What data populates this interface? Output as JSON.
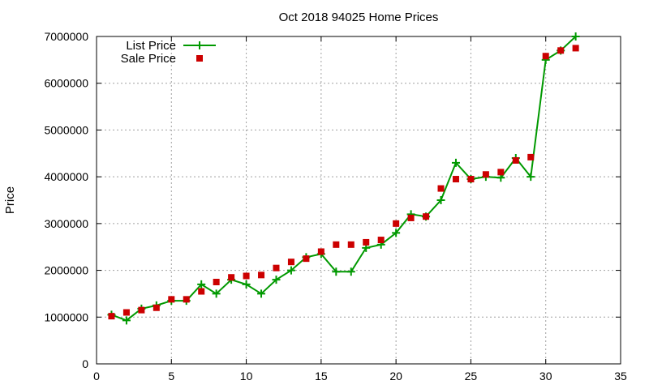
{
  "chart_data": {
    "type": "line",
    "title": "Oct 2018 94025 Home Prices",
    "xlabel": "",
    "ylabel": "Price",
    "xlim": [
      0,
      35
    ],
    "ylim": [
      0,
      7000000
    ],
    "x_ticks": [
      "0",
      "5",
      "10",
      "15",
      "20",
      "25",
      "30",
      "35"
    ],
    "y_ticks": [
      "0",
      "1000000",
      "2000000",
      "3000000",
      "4000000",
      "5000000",
      "6000000",
      "7000000"
    ],
    "grid": true,
    "legend_position": "top-left",
    "series": [
      {
        "name": "List Price",
        "style": "line-with-plus-markers",
        "color": "#009900",
        "x": [
          1,
          2,
          3,
          4,
          5,
          6,
          7,
          8,
          9,
          10,
          11,
          12,
          13,
          14,
          15,
          16,
          17,
          18,
          19,
          20,
          21,
          22,
          23,
          24,
          25,
          26,
          27,
          28,
          29,
          30,
          31,
          32
        ],
        "values": [
          1050000,
          930000,
          1180000,
          1250000,
          1350000,
          1350000,
          1700000,
          1500000,
          1800000,
          1700000,
          1500000,
          1800000,
          2000000,
          2280000,
          2350000,
          1970000,
          1970000,
          2480000,
          2550000,
          2800000,
          3200000,
          3150000,
          3500000,
          4300000,
          3950000,
          4000000,
          3980000,
          4400000,
          4000000,
          6500000,
          6700000,
          7000000
        ]
      },
      {
        "name": "Sale Price",
        "style": "square-markers",
        "color": "#cc0000",
        "x": [
          1,
          2,
          3,
          4,
          5,
          6,
          7,
          8,
          9,
          10,
          11,
          12,
          13,
          14,
          15,
          16,
          17,
          18,
          19,
          20,
          21,
          22,
          23,
          24,
          25,
          26,
          27,
          28,
          29,
          30,
          31,
          32
        ],
        "values": [
          1020000,
          1100000,
          1150000,
          1200000,
          1380000,
          1380000,
          1550000,
          1750000,
          1850000,
          1880000,
          1900000,
          2050000,
          2180000,
          2250000,
          2400000,
          2550000,
          2550000,
          2600000,
          2650000,
          3000000,
          3120000,
          3150000,
          3750000,
          3950000,
          3950000,
          4050000,
          4100000,
          4350000,
          4420000,
          6580000,
          6700000,
          6750000
        ]
      }
    ]
  }
}
